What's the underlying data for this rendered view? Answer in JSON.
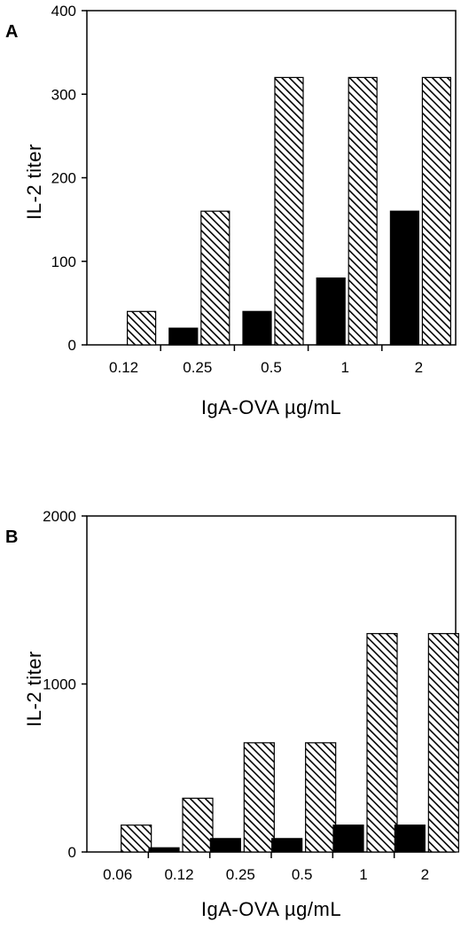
{
  "chart_data": [
    {
      "panel_label": "A",
      "type": "bar",
      "categories": [
        "0.12",
        "0.25",
        "0.5",
        "1",
        "2"
      ],
      "series": [
        {
          "values": [
            0,
            20,
            40,
            80,
            160
          ],
          "color": "#000000",
          "pattern": "solid"
        },
        {
          "values": [
            40,
            160,
            320,
            320,
            320
          ],
          "color": "#000000",
          "pattern": "hatched"
        }
      ],
      "xlabel": "IgA-OVA   µg/mL",
      "ylabel": "IL-2   titer",
      "ylim": [
        0,
        400
      ],
      "yticks": [
        "0",
        "100",
        "200",
        "300",
        "400"
      ],
      "grid": false
    },
    {
      "panel_label": "B",
      "type": "bar",
      "categories": [
        "0.06",
        "0.12",
        "0.25",
        "0.5",
        "1",
        "2"
      ],
      "series": [
        {
          "values": [
            0,
            25,
            80,
            80,
            160,
            160
          ],
          "color": "#000000",
          "pattern": "solid"
        },
        {
          "values": [
            160,
            320,
            650,
            650,
            1300,
            1300
          ],
          "color": "#000000",
          "pattern": "hatched"
        }
      ],
      "xlabel": "IgA-OVA   µg/mL",
      "ylabel": "IL-2   titer",
      "ylim": [
        0,
        2000
      ],
      "yticks": [
        "0",
        "1000",
        "2000"
      ],
      "grid": false
    }
  ]
}
